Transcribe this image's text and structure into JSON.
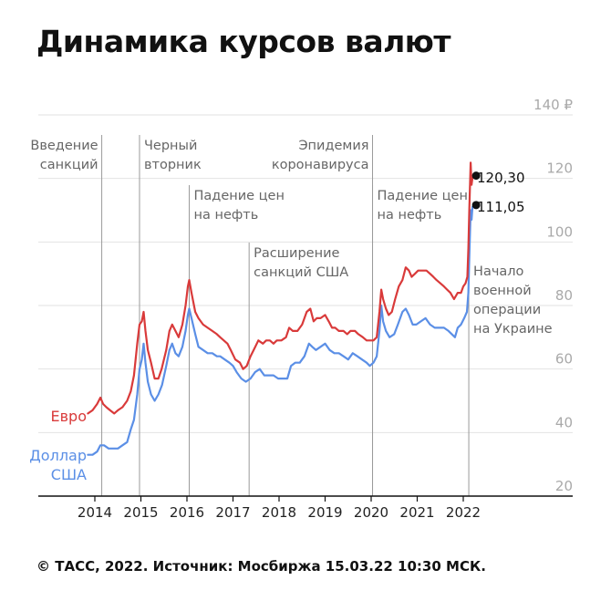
{
  "title": "Динамика курсов валют",
  "footer": "© ТАСС, 2022. Источник: Мосбиржа 15.03.22 10:30 МСК.",
  "colors": {
    "euro": "#d93a3a",
    "usd": "#5b8fe6",
    "grid": "#e2e2e2",
    "event_line": "#9a9a9a"
  },
  "chart_data": {
    "type": "line",
    "title": "Динамика курсов валют",
    "xlabel": "",
    "ylabel": "",
    "xlim": [
      2013.85,
      2022.55
    ],
    "ylim": [
      20,
      140
    ],
    "y_ticks": [
      20,
      40,
      60,
      80,
      100,
      120,
      140
    ],
    "y_tick_labels": [
      "20",
      "40",
      "60",
      "80",
      "100",
      "120",
      "140 ₽"
    ],
    "x_ticks": [
      2014,
      2015,
      2016,
      2017,
      2018,
      2019,
      2020,
      2021,
      2022
    ],
    "x_tick_labels": [
      "2014",
      "2015",
      "2016",
      "2017",
      "2018",
      "2019",
      "2020",
      "2021",
      "2022"
    ],
    "grid": true,
    "series": [
      {
        "key": "euro",
        "name": "Евро",
        "points": [
          [
            2013.85,
            46
          ],
          [
            2013.95,
            47
          ],
          [
            2014.05,
            49
          ],
          [
            2014.12,
            51
          ],
          [
            2014.18,
            49
          ],
          [
            2014.25,
            48
          ],
          [
            2014.33,
            47
          ],
          [
            2014.42,
            46
          ],
          [
            2014.5,
            47
          ],
          [
            2014.6,
            48
          ],
          [
            2014.7,
            50
          ],
          [
            2014.78,
            53
          ],
          [
            2014.85,
            58
          ],
          [
            2014.92,
            68
          ],
          [
            2014.97,
            74
          ],
          [
            2015.02,
            75
          ],
          [
            2015.06,
            78
          ],
          [
            2015.1,
            72
          ],
          [
            2015.15,
            66
          ],
          [
            2015.22,
            62
          ],
          [
            2015.3,
            57
          ],
          [
            2015.38,
            57
          ],
          [
            2015.45,
            60
          ],
          [
            2015.55,
            66
          ],
          [
            2015.62,
            72
          ],
          [
            2015.68,
            74
          ],
          [
            2015.75,
            72
          ],
          [
            2015.82,
            70
          ],
          [
            2015.9,
            74
          ],
          [
            2015.97,
            80
          ],
          [
            2016.02,
            86
          ],
          [
            2016.05,
            88
          ],
          [
            2016.1,
            84
          ],
          [
            2016.18,
            78
          ],
          [
            2016.25,
            76
          ],
          [
            2016.35,
            74
          ],
          [
            2016.45,
            73
          ],
          [
            2016.55,
            72
          ],
          [
            2016.65,
            71
          ],
          [
            2016.72,
            70
          ],
          [
            2016.8,
            69
          ],
          [
            2016.88,
            68
          ],
          [
            2016.95,
            66
          ],
          [
            2017.05,
            63
          ],
          [
            2017.15,
            62
          ],
          [
            2017.22,
            60
          ],
          [
            2017.3,
            61
          ],
          [
            2017.38,
            64
          ],
          [
            2017.45,
            66
          ],
          [
            2017.55,
            69
          ],
          [
            2017.65,
            68
          ],
          [
            2017.72,
            69
          ],
          [
            2017.8,
            69
          ],
          [
            2017.88,
            68
          ],
          [
            2017.95,
            69
          ],
          [
            2018.05,
            69
          ],
          [
            2018.15,
            70
          ],
          [
            2018.22,
            73
          ],
          [
            2018.3,
            72
          ],
          [
            2018.4,
            72
          ],
          [
            2018.5,
            74
          ],
          [
            2018.6,
            78
          ],
          [
            2018.68,
            79
          ],
          [
            2018.75,
            75
          ],
          [
            2018.82,
            76
          ],
          [
            2018.9,
            76
          ],
          [
            2019.0,
            77
          ],
          [
            2019.08,
            75
          ],
          [
            2019.15,
            73
          ],
          [
            2019.22,
            73
          ],
          [
            2019.3,
            72
          ],
          [
            2019.4,
            72
          ],
          [
            2019.48,
            71
          ],
          [
            2019.55,
            72
          ],
          [
            2019.65,
            72
          ],
          [
            2019.72,
            71
          ],
          [
            2019.82,
            70
          ],
          [
            2019.9,
            69
          ],
          [
            2019.97,
            69
          ],
          [
            2020.05,
            69
          ],
          [
            2020.12,
            70
          ],
          [
            2020.18,
            78
          ],
          [
            2020.22,
            85
          ],
          [
            2020.26,
            82
          ],
          [
            2020.32,
            79
          ],
          [
            2020.38,
            77
          ],
          [
            2020.45,
            78
          ],
          [
            2020.52,
            82
          ],
          [
            2020.6,
            86
          ],
          [
            2020.68,
            88
          ],
          [
            2020.75,
            92
          ],
          [
            2020.82,
            91
          ],
          [
            2020.88,
            89
          ],
          [
            2020.95,
            90
          ],
          [
            2021.02,
            91
          ],
          [
            2021.1,
            91
          ],
          [
            2021.2,
            91
          ],
          [
            2021.28,
            90
          ],
          [
            2021.35,
            89
          ],
          [
            2021.42,
            88
          ],
          [
            2021.5,
            87
          ],
          [
            2021.58,
            86
          ],
          [
            2021.65,
            85
          ],
          [
            2021.72,
            84
          ],
          [
            2021.8,
            82
          ],
          [
            2021.88,
            84
          ],
          [
            2021.95,
            84
          ],
          [
            2022.0,
            86
          ],
          [
            2022.05,
            87
          ],
          [
            2022.09,
            89
          ],
          [
            2022.11,
            98
          ],
          [
            2022.13,
            110
          ],
          [
            2022.16,
            125
          ],
          [
            2022.18,
            118
          ],
          [
            2022.2,
            120.3
          ]
        ]
      },
      {
        "key": "usd",
        "name": "Доллар\nСША",
        "points": [
          [
            2013.85,
            33
          ],
          [
            2013.95,
            33
          ],
          [
            2014.05,
            34
          ],
          [
            2014.12,
            36
          ],
          [
            2014.2,
            36
          ],
          [
            2014.3,
            35
          ],
          [
            2014.4,
            35
          ],
          [
            2014.5,
            35
          ],
          [
            2014.6,
            36
          ],
          [
            2014.7,
            37
          ],
          [
            2014.78,
            41
          ],
          [
            2014.85,
            44
          ],
          [
            2014.92,
            52
          ],
          [
            2014.97,
            60
          ],
          [
            2015.02,
            63
          ],
          [
            2015.06,
            68
          ],
          [
            2015.1,
            62
          ],
          [
            2015.15,
            56
          ],
          [
            2015.22,
            52
          ],
          [
            2015.3,
            50
          ],
          [
            2015.38,
            52
          ],
          [
            2015.46,
            55
          ],
          [
            2015.55,
            61
          ],
          [
            2015.62,
            66
          ],
          [
            2015.68,
            68
          ],
          [
            2015.75,
            65
          ],
          [
            2015.82,
            64
          ],
          [
            2015.9,
            67
          ],
          [
            2015.97,
            72
          ],
          [
            2016.02,
            77
          ],
          [
            2016.05,
            79
          ],
          [
            2016.1,
            76
          ],
          [
            2016.18,
            71
          ],
          [
            2016.25,
            67
          ],
          [
            2016.35,
            66
          ],
          [
            2016.45,
            65
          ],
          [
            2016.55,
            65
          ],
          [
            2016.65,
            64
          ],
          [
            2016.72,
            64
          ],
          [
            2016.82,
            63
          ],
          [
            2016.92,
            62
          ],
          [
            2017.0,
            61
          ],
          [
            2017.08,
            59
          ],
          [
            2017.18,
            57
          ],
          [
            2017.28,
            56
          ],
          [
            2017.38,
            57
          ],
          [
            2017.48,
            59
          ],
          [
            2017.58,
            60
          ],
          [
            2017.68,
            58
          ],
          [
            2017.78,
            58
          ],
          [
            2017.88,
            58
          ],
          [
            2017.98,
            57
          ],
          [
            2018.08,
            57
          ],
          [
            2018.18,
            57
          ],
          [
            2018.26,
            61
          ],
          [
            2018.35,
            62
          ],
          [
            2018.45,
            62
          ],
          [
            2018.55,
            64
          ],
          [
            2018.65,
            68
          ],
          [
            2018.72,
            67
          ],
          [
            2018.8,
            66
          ],
          [
            2018.9,
            67
          ],
          [
            2019.0,
            68
          ],
          [
            2019.1,
            66
          ],
          [
            2019.2,
            65
          ],
          [
            2019.3,
            65
          ],
          [
            2019.4,
            64
          ],
          [
            2019.5,
            63
          ],
          [
            2019.6,
            65
          ],
          [
            2019.7,
            64
          ],
          [
            2019.8,
            63
          ],
          [
            2019.9,
            62
          ],
          [
            2019.97,
            61
          ],
          [
            2020.05,
            62
          ],
          [
            2020.12,
            64
          ],
          [
            2020.18,
            72
          ],
          [
            2020.22,
            80
          ],
          [
            2020.26,
            75
          ],
          [
            2020.32,
            72
          ],
          [
            2020.4,
            70
          ],
          [
            2020.5,
            71
          ],
          [
            2020.58,
            74
          ],
          [
            2020.68,
            78
          ],
          [
            2020.75,
            79
          ],
          [
            2020.82,
            77
          ],
          [
            2020.9,
            74
          ],
          [
            2020.98,
            74
          ],
          [
            2021.08,
            75
          ],
          [
            2021.18,
            76
          ],
          [
            2021.28,
            74
          ],
          [
            2021.38,
            73
          ],
          [
            2021.48,
            73
          ],
          [
            2021.58,
            73
          ],
          [
            2021.68,
            72
          ],
          [
            2021.75,
            71
          ],
          [
            2021.82,
            70
          ],
          [
            2021.88,
            73
          ],
          [
            2021.95,
            74
          ],
          [
            2022.02,
            76
          ],
          [
            2022.08,
            78
          ],
          [
            2022.11,
            84
          ],
          [
            2022.13,
            95
          ],
          [
            2022.16,
            110
          ],
          [
            2022.18,
            107
          ],
          [
            2022.2,
            111.05
          ]
        ]
      }
    ],
    "series_labels": {
      "euro": "Евро",
      "usd_line1": "Доллар",
      "usd_line2": "США"
    },
    "end_values": {
      "euro": "120,30",
      "usd": "111,05"
    },
    "events": [
      {
        "x": 2014.15,
        "lines": [
          "Введение",
          "санкций"
        ],
        "anchor": "end"
      },
      {
        "x": 2014.97,
        "lines": [
          "Черный",
          "вторник"
        ],
        "anchor": "start"
      },
      {
        "x": 2016.05,
        "lines": [
          "Падение цен",
          "на нефть"
        ],
        "anchor": "start"
      },
      {
        "x": 2017.35,
        "lines": [
          "Расширение",
          "санкций США"
        ],
        "anchor": "start"
      },
      {
        "x": 2020.03,
        "lines": [
          "Эпидемия",
          "коронавируса"
        ],
        "anchor": "end"
      },
      {
        "x": 2020.03,
        "lines": [
          "Падение цен",
          "на нефть"
        ],
        "anchor": "start"
      },
      {
        "x": 2022.12,
        "lines": [
          "Начало",
          "военной",
          "операции",
          "на Украине"
        ],
        "anchor": "start"
      }
    ]
  }
}
